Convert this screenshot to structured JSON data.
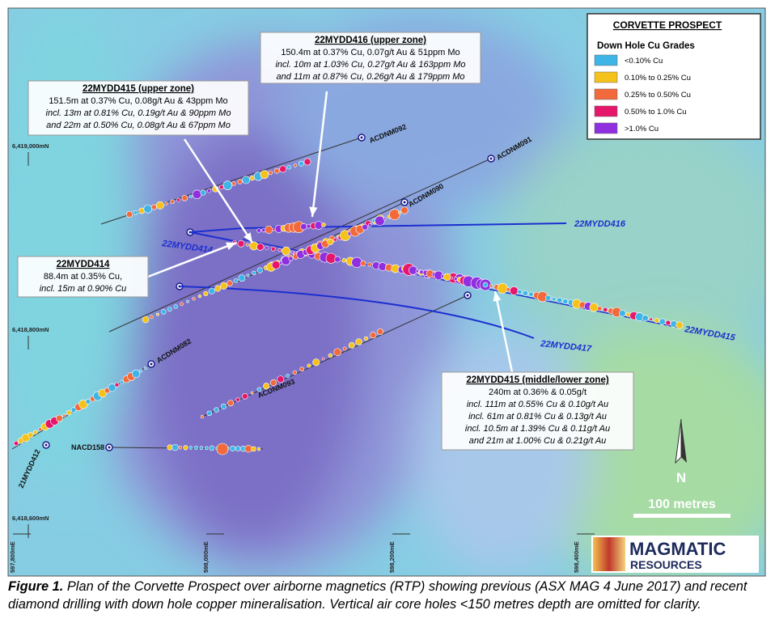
{
  "legend": {
    "title": "CORVETTE PROSPECT",
    "subtitle": "Down Hole Cu Grades",
    "items": [
      {
        "label": "<0.10% Cu",
        "color": "#3fb4e6"
      },
      {
        "label": "0.10% to 0.25% Cu",
        "color": "#f5c21b"
      },
      {
        "label": "0.25% to 0.50% Cu",
        "color": "#f26a3b"
      },
      {
        "label": "0.50% to 1.0% Cu",
        "color": "#e6176a"
      },
      {
        "label": ">1.0% Cu",
        "color": "#8f2fe0"
      }
    ]
  },
  "callouts": [
    {
      "title": "22MYDD416 (upper zone)",
      "lines": [
        "150.4m at 0.37% Cu, 0.07g/t Au & 51ppm Mo",
        "incl. 10m at 1.03% Cu, 0.27g/t Au & 163ppm Mo",
        "and 11m at 0.87% Cu, 0.26g/t Au & 179ppm Mo"
      ]
    },
    {
      "title": "22MYDD415 (upper zone)",
      "lines": [
        "151.5m at 0.37% Cu, 0.08g/t Au & 43ppm Mo",
        "incl. 13m at 0.81% Cu, 0.19g/t Au & 90ppm Mo",
        "and 22m at 0.50% Cu, 0.08g/t Au & 67ppm Mo"
      ]
    },
    {
      "title": "22MYDD414",
      "lines": [
        "88.4m at 0.35% Cu,",
        "incl. 15m at 0.90% Cu"
      ]
    },
    {
      "title": "22MYDD415 (middle/lower zone)",
      "lines": [
        "240m at 0.36% & 0.05g/t",
        "incl. 111m at 0.55% Cu & 0.10g/t Au",
        "incl. 61m at 0.81% Cu & 0.13g/t Au",
        "incl. 10.5m at 1.39% Cu & 0.11g/t Au",
        "and 21m at 1.00% Cu & 0.21g/t Au"
      ]
    }
  ],
  "hole_labels": [
    "ACDNM092",
    "ACDNM091",
    "ACDNM090",
    "22MYDD416",
    "22MYDD414",
    "22MYDD415",
    "22MYDD417",
    "ACDNM082",
    "ACDNM093",
    "NACD158",
    "21MYDD412"
  ],
  "grid_labels": {
    "northings": [
      "6,419,000mN",
      "6,418,800mN",
      "6,418,600mN"
    ],
    "eastings": [
      "597,800mE",
      "598,000mE",
      "598,200mE",
      "598,400mE"
    ]
  },
  "north": "N",
  "scale": "100 metres",
  "logo": {
    "line1": "MAGMATIC",
    "line2": "RESOURCES"
  },
  "caption": {
    "label": "Figure 1.",
    "text": "Plan of the Corvette Prospect over airborne magnetics (RTP) showing previous (ASX MAG 4 June 2017) and recent diamond drilling with down hole copper mineralisation. Vertical air core holes <150 metres depth are omitted for clarity."
  }
}
